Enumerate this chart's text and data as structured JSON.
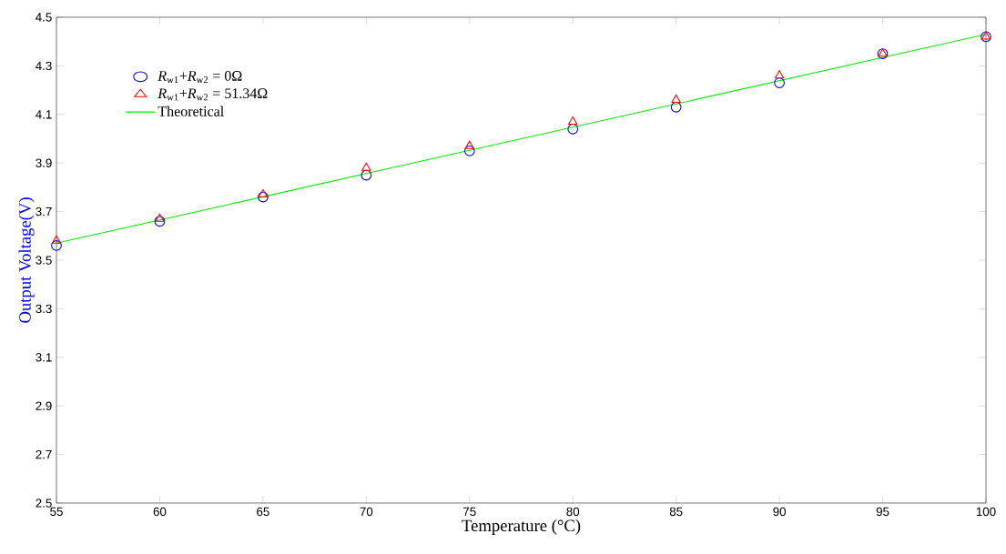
{
  "chart_data": {
    "type": "scatter",
    "xlabel": "Temperature (°C)",
    "ylabel": "Output Voltage(V)",
    "xlim": [
      55,
      100
    ],
    "ylim": [
      2.5,
      4.5
    ],
    "xticks": [
      55,
      60,
      65,
      70,
      75,
      80,
      85,
      90,
      95,
      100
    ],
    "yticks": [
      2.5,
      2.7,
      2.9,
      3.1,
      3.3,
      3.5,
      3.7,
      3.9,
      4.1,
      4.3,
      4.5
    ],
    "grid": false,
    "legend": "top left",
    "x": [
      55,
      60,
      65,
      70,
      75,
      80,
      85,
      90,
      95,
      100
    ],
    "series": [
      {
        "name": "*R*$_{w1}$+*R*$_{w2}$ = 0Ω",
        "color": "#0000ff",
        "marker": "circle",
        "values": [
          3.56,
          3.66,
          3.76,
          3.85,
          3.95,
          4.04,
          4.13,
          4.23,
          4.35,
          4.42
        ]
      },
      {
        "name": "*R*$_{w1}$+*R*$_{w2}$ = 51.34Ω",
        "color": "#ff0000",
        "marker": "triangle",
        "values": [
          3.58,
          3.67,
          3.77,
          3.88,
          3.97,
          4.07,
          4.16,
          4.26,
          4.35,
          4.42
        ]
      },
      {
        "name": "Theoretical",
        "type": "line",
        "color": "#00ee00",
        "marker": "none",
        "line_style": "solid",
        "x": [
          55,
          100
        ],
        "values": [
          3.57,
          4.43
        ]
      }
    ]
  }
}
